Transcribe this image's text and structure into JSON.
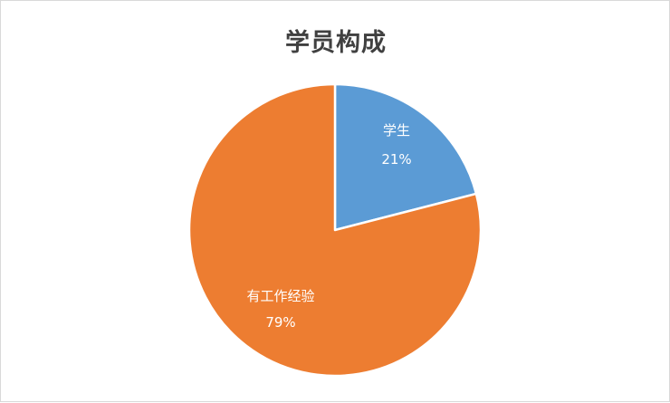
{
  "chart_data": {
    "type": "pie",
    "title": "学员构成",
    "slices": [
      {
        "label": "学生",
        "percent_label": "21%",
        "value": 21,
        "color": "#5b9bd5"
      },
      {
        "label": "有工作经验",
        "percent_label": "79%",
        "value": 79,
        "color": "#ed7d31"
      }
    ],
    "start_angle_deg": 0,
    "direction": "clockwise",
    "legend": "none"
  }
}
